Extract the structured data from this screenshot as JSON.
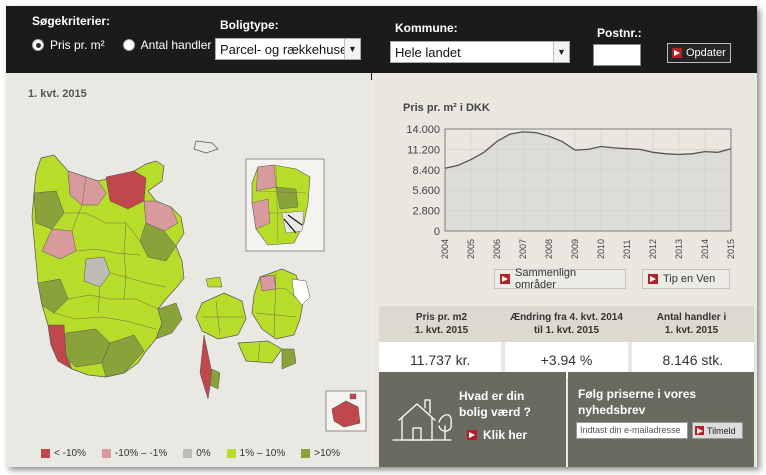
{
  "filters": {
    "criteria_label": "Søgekriterier:",
    "options": [
      {
        "label": "Pris pr. m²",
        "checked": true
      },
      {
        "label": "Antal handler",
        "checked": false
      }
    ],
    "boligtype_label": "Boligtype:",
    "boligtype_value": "Parcel- og rækkehuse",
    "kommune_label": "Kommune:",
    "kommune_value": "Hele landet",
    "postnr_label": "Postnr.:",
    "postnr_value": "",
    "update_button": "Opdater"
  },
  "map": {
    "period": "1. kvt. 2015",
    "legend": [
      {
        "label": "< -10%",
        "color": "#c0484d"
      },
      {
        "label": "-10% – -1%",
        "color": "#d99a9d"
      },
      {
        "label": "0%",
        "color": "#bdbcb4"
      },
      {
        "label": "1% – 10%",
        "color": "#b8dc2a"
      },
      {
        "label": ">10%",
        "color": "#8aa23a"
      }
    ]
  },
  "chart_data": {
    "type": "area",
    "title": "Pris pr. m² i DKK",
    "x": [
      2004.0,
      2004.5,
      2005.0,
      2005.5,
      2006.0,
      2006.5,
      2007.0,
      2007.5,
      2008.0,
      2008.5,
      2009.0,
      2009.5,
      2010.0,
      2010.5,
      2011.0,
      2011.5,
      2012.0,
      2012.5,
      2013.0,
      2013.5,
      2014.0,
      2014.5,
      2015.0
    ],
    "values": [
      8600,
      9000,
      9800,
      10800,
      12300,
      13300,
      13600,
      13500,
      13000,
      12300,
      11100,
      11200,
      11600,
      11400,
      11300,
      11200,
      10800,
      10600,
      10500,
      10600,
      10900,
      10800,
      11300
    ],
    "xticks": [
      "2004",
      "2005",
      "2006",
      "2007",
      "2008",
      "2009",
      "2010",
      "2011",
      "2012",
      "2013",
      "2014",
      "2015"
    ],
    "yticks": [
      "0",
      "2.800",
      "5.600",
      "8.400",
      "11.200",
      "14.000"
    ],
    "xlim": [
      2004,
      2015
    ],
    "ylim": [
      0,
      14000
    ],
    "grid": true,
    "line_color": "#555555",
    "fill_color": "#d5d4cf"
  },
  "chart_buttons": {
    "compare": "Sammenlign områder",
    "tip": "Tip en Ven"
  },
  "stats": {
    "headers": [
      "Pris pr. m2\n1. kvt. 2015",
      "Ændring fra 4. kvt. 2014\ntil 1. kvt. 2015",
      "Antal handler i\n1. kvt. 2015"
    ],
    "values": [
      "11.737 kr.",
      "+3.94 %",
      "8.146 stk."
    ]
  },
  "promo": {
    "line1": "Hvad er din",
    "line2": "bolig værd ?",
    "link": "Klik her",
    "icon": "house-sketch-icon"
  },
  "newsletter": {
    "line1": "Følg priserne i vores",
    "line2": "nyhedsbrev",
    "placeholder": "Indtast din e-mailadresse",
    "button": "Tilmeld"
  }
}
